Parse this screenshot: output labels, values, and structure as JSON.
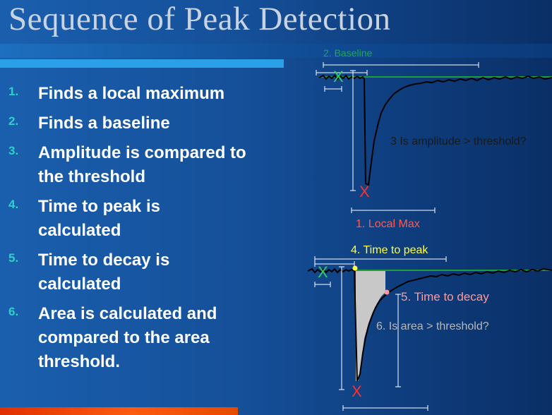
{
  "slide": {
    "title": "Sequence of Peak Detection",
    "steps": [
      {
        "num": "1.",
        "text": "Finds a local maximum"
      },
      {
        "num": "2.",
        "text": "Finds a baseline"
      },
      {
        "num": "3.",
        "text": "Amplitude is compared to the threshold"
      },
      {
        "num": "4.",
        "text": "Time to peak is calculated"
      },
      {
        "num": "5.",
        "text": "Time to decay is calculated"
      },
      {
        "num": "6.",
        "text": "Area is calculated and compared to the area threshold."
      }
    ]
  },
  "diagram_top": {
    "baseline_label": "2. Baseline",
    "amplitude_label": "3 Is amplitude > threshold?",
    "local_max_label": "1. Local Max",
    "marker_baseline": "X",
    "marker_peak": "X"
  },
  "diagram_bottom": {
    "time_to_peak_label": "4. Time to peak",
    "time_to_decay_label": "5. Time to decay",
    "area_label": "6. Is area > threshold?",
    "marker_baseline": "X",
    "marker_peak": "X"
  },
  "colors": {
    "baseline_line": "#1e9e3a",
    "marker_green": "#33cc66",
    "marker_red": "#ff3030",
    "label_green": "#1faa4a",
    "label_red": "#ff5a50",
    "label_yellow": "#ffff40",
    "label_pink": "#ff9999",
    "label_gray": "#b8b8b8",
    "trace": "#000000"
  }
}
